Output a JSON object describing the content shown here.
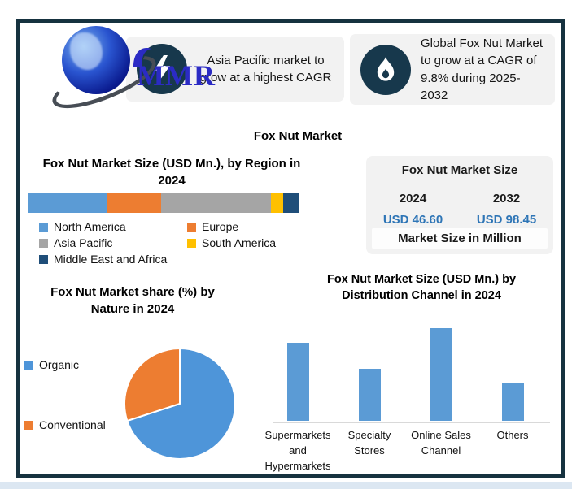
{
  "header": {
    "logo_text": "MMR",
    "page_title": "Fox Nut Market"
  },
  "callouts": [
    {
      "icon": "lightning-bolt-icon",
      "text": "Asia Pacific market to grow at a highest CAGR"
    },
    {
      "icon": "flame-icon",
      "text": "Global Fox Nut Market to grow at a CAGR of 9.8% during 2025-2032"
    }
  ],
  "market_size_box": {
    "title": "Fox Nut Market Size",
    "year_left": "2024",
    "year_right": "2032",
    "value_left": "USD 46.60",
    "value_right": "USD 98.45",
    "footer": "Market Size in Million"
  },
  "chart_data": [
    {
      "type": "bar",
      "subtype": "stacked-horizontal-single-bar",
      "title": "Fox Nut Market Size (USD Mn.), by Region in 2024",
      "categories": [
        "North America",
        "Europe",
        "Asia Pacific",
        "South America",
        "Middle East and Africa"
      ],
      "values_pct_of_total": [
        29,
        20,
        40.5,
        4.5,
        6
      ],
      "colors": [
        "#5B9BD5",
        "#ED7D31",
        "#A5A5A5",
        "#FFC000",
        "#1F4E79"
      ],
      "legend_position": "bottom"
    },
    {
      "type": "pie",
      "title": "Fox Nut Market share (%) by Nature in 2024",
      "categories": [
        "Organic",
        "Conventional"
      ],
      "values_pct": [
        70,
        30
      ],
      "colors": [
        "#4E95D9",
        "#ED7D31"
      ],
      "legend_position": "left",
      "start_angle_deg": 0,
      "direction": "clockwise"
    },
    {
      "type": "bar",
      "title": "Fox Nut Market Size (USD Mn.) by Distribution Channel in 2024",
      "categories": [
        "Supermarkets and Hypermarkets",
        "Specialty Stores",
        "Online Sales Channel",
        "Others"
      ],
      "values_relative_height_pct": [
        84,
        56,
        100,
        41
      ],
      "bar_color": "#5B9BD5",
      "axis_labels_shown": false
    }
  ],
  "colors": {
    "frame_border": "#16323F",
    "icon_circle": "#17384C",
    "callout_bg": "#F2F2F2",
    "value_blue": "#2E75B6",
    "bottom_strip": "#DCE7F2",
    "logo_blue": "#2B2BC4"
  }
}
